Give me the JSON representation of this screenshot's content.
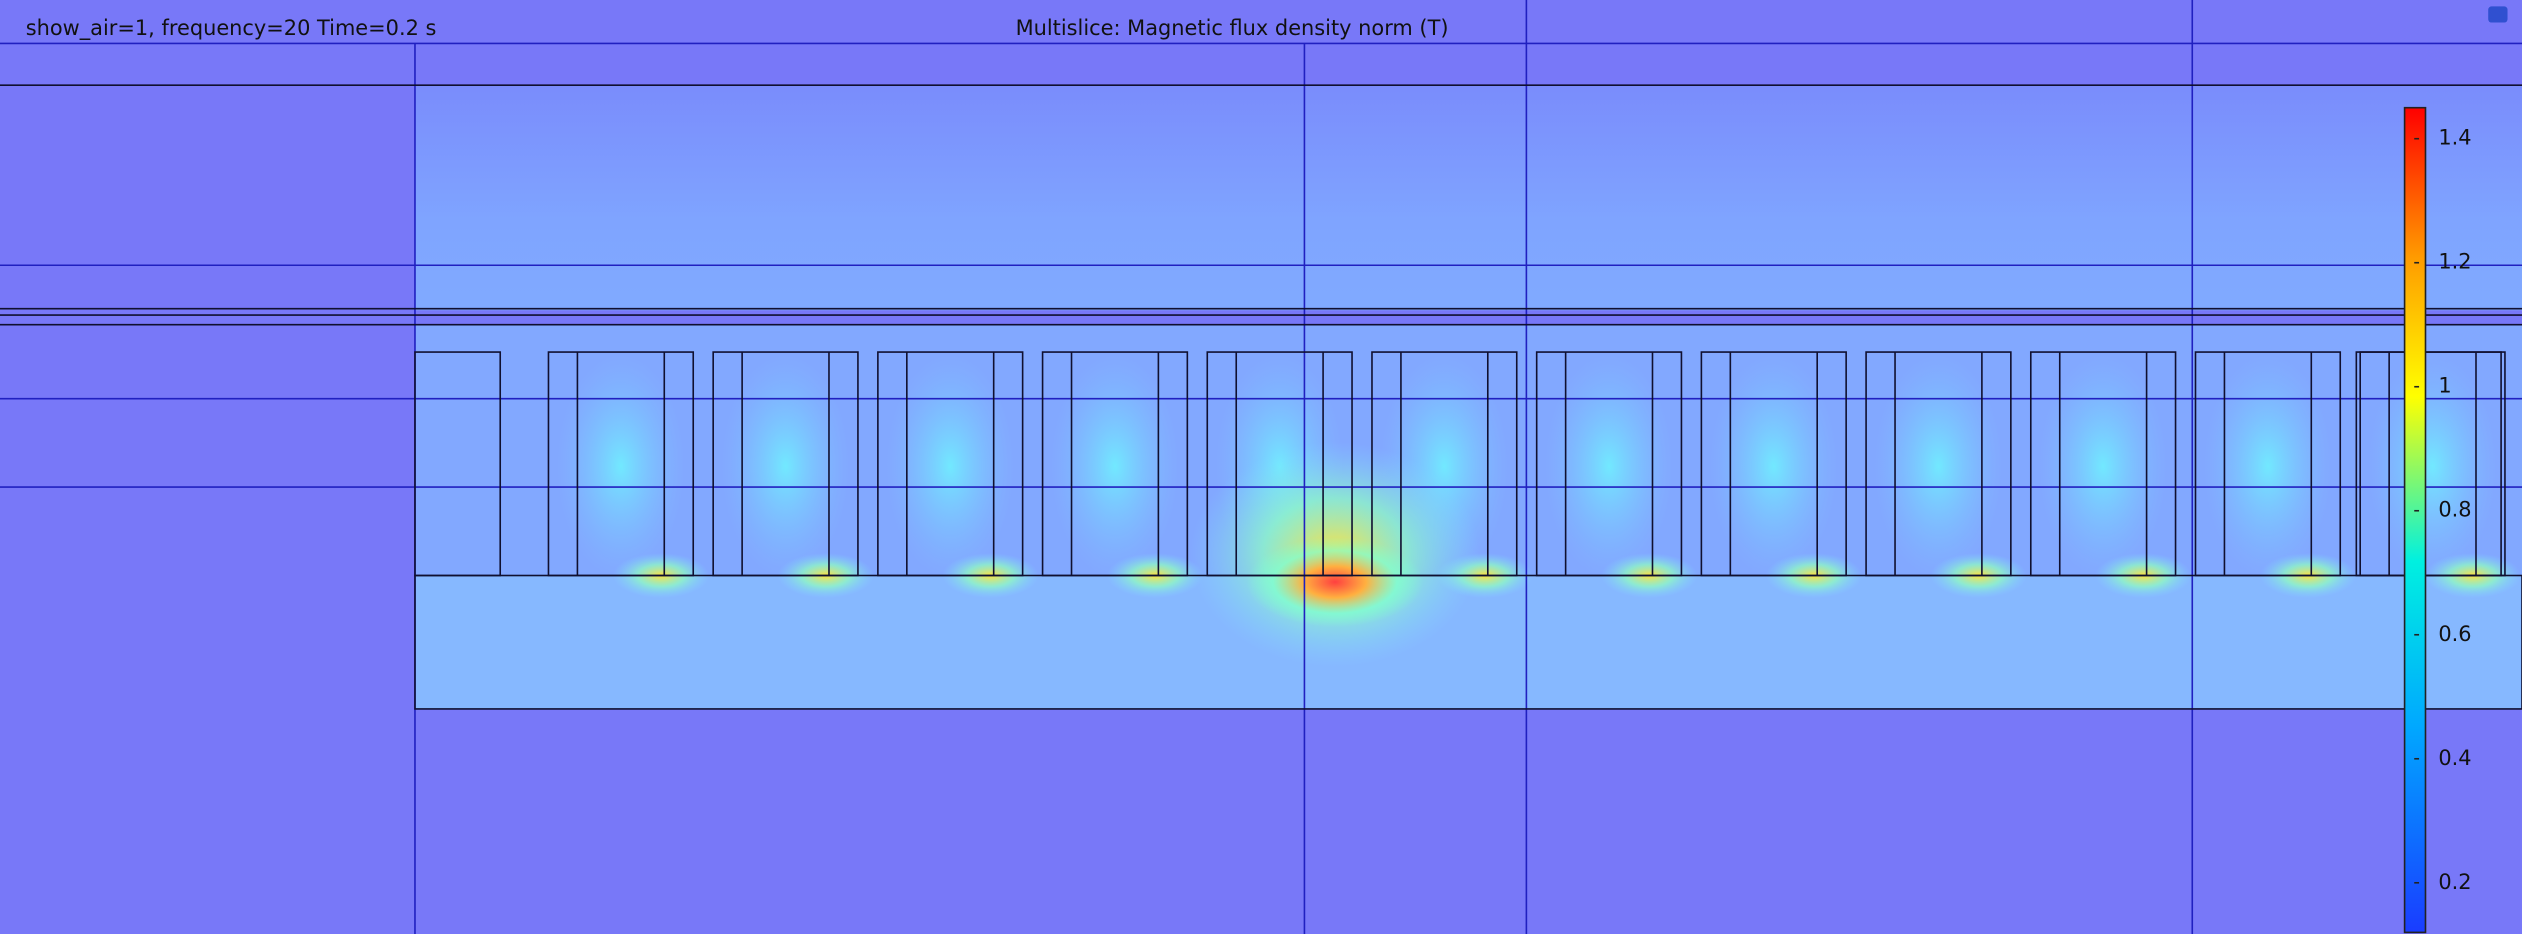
{
  "header": {
    "parameters": "show_air=1, frequency=20 Time=0.2 s",
    "title": "Multislice: Magnetic flux density norm (T)"
  },
  "colorbar": {
    "range": [
      0.12,
      1.45
    ],
    "ticks": [
      0.2,
      0.4,
      0.6,
      0.8,
      1,
      1.2,
      1.4
    ]
  }
}
